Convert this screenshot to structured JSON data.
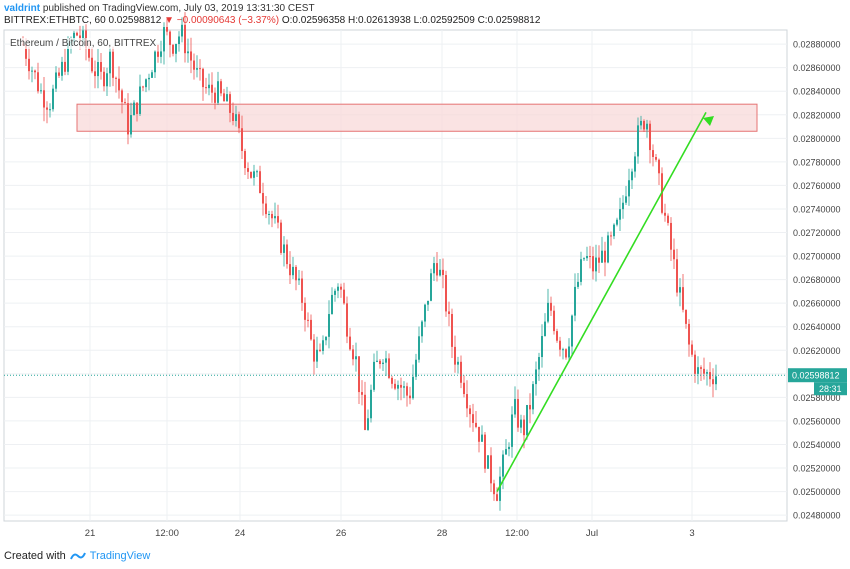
{
  "header": {
    "author": "valdrint",
    "published_text": "published on TradingView.com, July 03, 2019 13:31:30 CEST",
    "symbol_line": "BITTREX:ETHBTC, 60",
    "last_price": "0.02598812",
    "change_text": "▼ −0.00090643 (−3.37%)",
    "ohlc_text": "O:0.02596358 H:0.02613938 L:0.02592509 C:0.02598812"
  },
  "chart_title": "Ethereum / Bitcoin, 60, BITTREX",
  "footer": {
    "created_with": "Created with",
    "brand": "TradingView"
  },
  "colors": {
    "up": "#26a69a",
    "down": "#ef5350",
    "zone_fill": "#f8d7d7",
    "zone_stroke": "#e57373",
    "trend": "#33dd22",
    "price_line": "#26a69a",
    "grid": "#eef0f3",
    "axis_text": "#444444"
  },
  "chart_data": {
    "type": "candlestick",
    "title": "Ethereum / Bitcoin, 60, BITTREX",
    "ylim": [
      0.02475,
      0.02892
    ],
    "y_ticks": [
      "0.02880000",
      "0.02860000",
      "0.02840000",
      "0.02820000",
      "0.02800000",
      "0.02780000",
      "0.02760000",
      "0.02740000",
      "0.02720000",
      "0.02700000",
      "0.02680000",
      "0.02660000",
      "0.02640000",
      "0.02620000",
      "0.02600000",
      "0.02580000",
      "0.02560000",
      "0.02540000",
      "0.02520000",
      "0.02500000",
      "0.02480000"
    ],
    "x_ticks": [
      "21",
      "12:00",
      "24",
      "26",
      "28",
      "12:00",
      "Jul",
      "3"
    ],
    "current_price_label": "0.02598812",
    "countdown_label": "28:31",
    "current_price": 0.02598812,
    "resistance_zone": {
      "low": 0.02806,
      "high": 0.02829
    },
    "trendline": {
      "from": 0.025,
      "to": 0.02822
    },
    "path": [
      0.0288,
      0.0286,
      0.0284,
      0.0283,
      0.0285,
      0.0287,
      0.0289,
      0.0288,
      0.0286,
      0.0285,
      0.0287,
      0.0284,
      0.0281,
      0.0283,
      0.0285,
      0.0287,
      0.0289,
      0.0288,
      0.0289,
      0.0287,
      0.0285,
      0.0284,
      0.0284,
      0.0283,
      0.0282,
      0.0279,
      0.0277,
      0.0276,
      0.0274,
      0.0272,
      0.027,
      0.0268,
      0.0266,
      0.0262,
      0.0261,
      0.0266,
      0.0268,
      0.0264,
      0.0261,
      0.0255,
      0.026,
      0.0262,
      0.026,
      0.0259,
      0.0258,
      0.0262,
      0.0266,
      0.027,
      0.0267,
      0.0262,
      0.026,
      0.0257,
      0.0255,
      0.0252,
      0.025,
      0.0253,
      0.0257,
      0.0255,
      0.0258,
      0.0262,
      0.0266,
      0.0263,
      0.0262,
      0.0267,
      0.027,
      0.0269,
      0.027,
      0.0271,
      0.0273,
      0.0277,
      0.028,
      0.0282,
      0.0278,
      0.0274,
      0.027,
      0.0266,
      0.0262,
      0.026,
      0.026,
      0.026
    ]
  }
}
